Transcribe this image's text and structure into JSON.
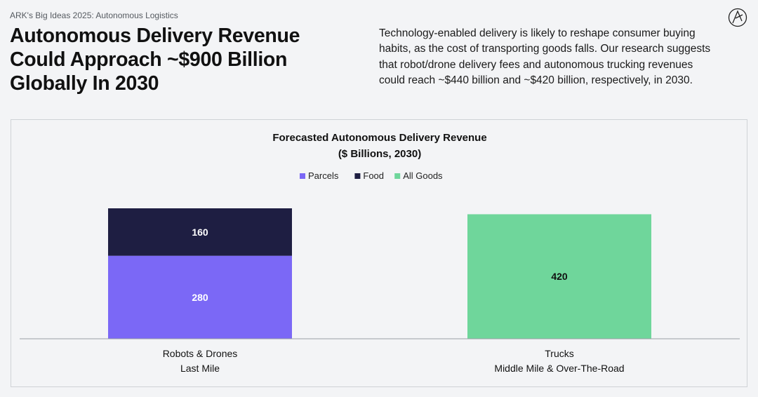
{
  "header": {
    "eyebrow": "ARK's Big Ideas 2025: Autonomous Logistics",
    "headline": "Autonomous Delivery Revenue Could Approach ~$900 Billion Globally In 2030",
    "description": "Technology-enabled delivery is likely to reshape consumer buying habits, as the cost of transporting goods falls. Our research suggests that robot/drone delivery fees and autonomous trucking revenues could reach ~$440 billion and ~$420 billion, respectively, in 2030."
  },
  "logo": {
    "icon": "ark-logo-icon"
  },
  "chart_data": {
    "type": "bar",
    "stacked": true,
    "title": "Forecasted Autonomous Delivery Revenue",
    "subtitle": "($ Billions, 2030)",
    "legend_position": "top-center",
    "categories": [
      [
        "Robots & Drones",
        "Last Mile"
      ],
      [
        "Trucks",
        "Middle Mile & Over-The-Road"
      ]
    ],
    "series": [
      {
        "name": "Parcels",
        "color": "#7b68f6",
        "label_color": "#ffffff",
        "values": [
          280,
          null
        ]
      },
      {
        "name": "Food",
        "color": "#1e1e42",
        "label_color": "#ffffff",
        "values": [
          160,
          null
        ]
      },
      {
        "name": "All Goods",
        "color": "#6fd69b",
        "label_color": "#111111",
        "values": [
          null,
          420
        ]
      }
    ],
    "ylim": [
      0,
      440
    ],
    "grid": false
  }
}
